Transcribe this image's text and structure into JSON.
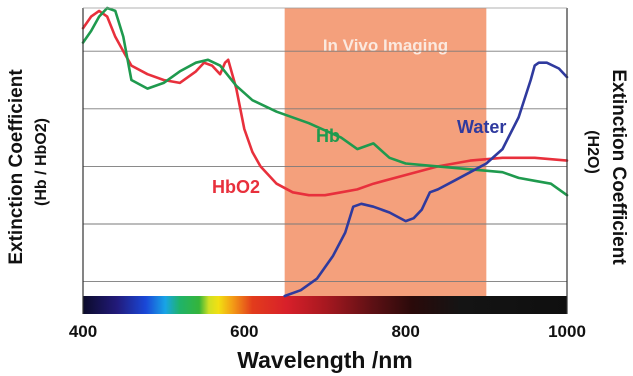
{
  "chart_data": {
    "type": "line",
    "xlabel": "Wavelength /nm",
    "ylabel_left": [
      "Extinction Coefficient",
      "(Hb / HbO2)"
    ],
    "ylabel_right": [
      "Extinction Coefficient",
      "(H2O)"
    ],
    "xlim": [
      400,
      1000
    ],
    "x_ticks": [
      400,
      600,
      800,
      1000
    ],
    "ylim": [
      0,
      100
    ],
    "y_gridlines": [
      5,
      25,
      45,
      65,
      85
    ],
    "grid": true,
    "spectrum_bar": true,
    "highlight_region": {
      "x_range": [
        650,
        900
      ],
      "label": "In Vivo Imaging",
      "color": "#f4a07c"
    },
    "series": [
      {
        "name": "HbO2",
        "color": "#e8303c",
        "x": [
          400,
          410,
          420,
          430,
          440,
          450,
          460,
          480,
          500,
          520,
          540,
          550,
          560,
          570,
          576,
          580,
          590,
          600,
          610,
          620,
          640,
          660,
          680,
          700,
          720,
          740,
          760,
          800,
          840,
          880,
          920,
          940,
          960,
          1000
        ],
        "y": [
          93,
          97,
          99,
          97,
          90,
          85,
          80,
          77,
          75,
          74,
          78,
          81,
          80,
          77,
          81,
          82,
          72,
          58,
          50,
          45,
          39,
          36,
          35,
          35,
          36,
          37,
          39,
          42,
          45,
          47,
          48,
          48,
          48,
          47
        ]
      },
      {
        "name": "Hb",
        "color": "#1f9a4e",
        "x": [
          400,
          410,
          420,
          430,
          440,
          450,
          460,
          480,
          500,
          520,
          540,
          555,
          570,
          590,
          610,
          640,
          680,
          720,
          740,
          760,
          780,
          800,
          840,
          880,
          920,
          940,
          960,
          980,
          1000
        ],
        "y": [
          88,
          92,
          97,
          100,
          99,
          90,
          75,
          72,
          74,
          78,
          81,
          82,
          80,
          73,
          68,
          64,
          60,
          55,
          51,
          53,
          48,
          46,
          45,
          44,
          43,
          41,
          40,
          39,
          35
        ]
      },
      {
        "name": "Water",
        "color": "#2f3a9e",
        "x": [
          650,
          670,
          690,
          710,
          725,
          735,
          745,
          760,
          780,
          800,
          810,
          820,
          830,
          840,
          860,
          880,
          900,
          920,
          940,
          955,
          960,
          965,
          975,
          990,
          1000
        ],
        "y": [
          0,
          2,
          6,
          14,
          22,
          31,
          32,
          31,
          29,
          26,
          27,
          30,
          36,
          37,
          40,
          43,
          46,
          51,
          62,
          75,
          80,
          81,
          81,
          79,
          76
        ]
      }
    ]
  }
}
